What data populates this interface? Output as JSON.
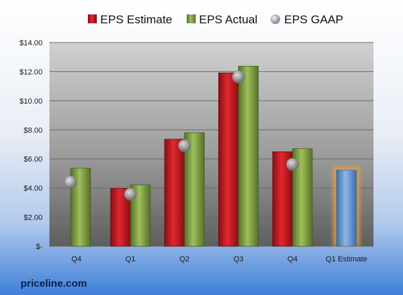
{
  "brand": "priceline.com",
  "colors": {
    "estimate": "#c0141b",
    "actual": "#7a9a3a",
    "gaap": "#9aa0a8",
    "estimate_highlight": "#6f9fd8",
    "highlight_glow": "#f0a040"
  },
  "chart_data": {
    "type": "bar",
    "categories": [
      "Q4",
      "Q1",
      "Q2",
      "Q3",
      "Q4",
      "Q1 Estimate"
    ],
    "series": [
      {
        "name": "EPS Estimate",
        "values": [
          null,
          3.98,
          7.36,
          11.92,
          6.5,
          null
        ]
      },
      {
        "name": "EPS Actual",
        "values": [
          5.37,
          4.22,
          7.81,
          12.38,
          6.71,
          5.23
        ]
      },
      {
        "name": "EPS GAAP",
        "values": [
          4.41,
          3.58,
          6.91,
          11.64,
          5.63,
          null
        ]
      }
    ],
    "ylim": [
      0,
      14
    ],
    "y_ticks": [
      "$-",
      "$2.00",
      "$4.00",
      "$6.00",
      "$8.00",
      "$10.00",
      "$12.00",
      "$14.00"
    ],
    "grid": true,
    "legend_position": "top",
    "highlighted_category": "Q1 Estimate"
  }
}
